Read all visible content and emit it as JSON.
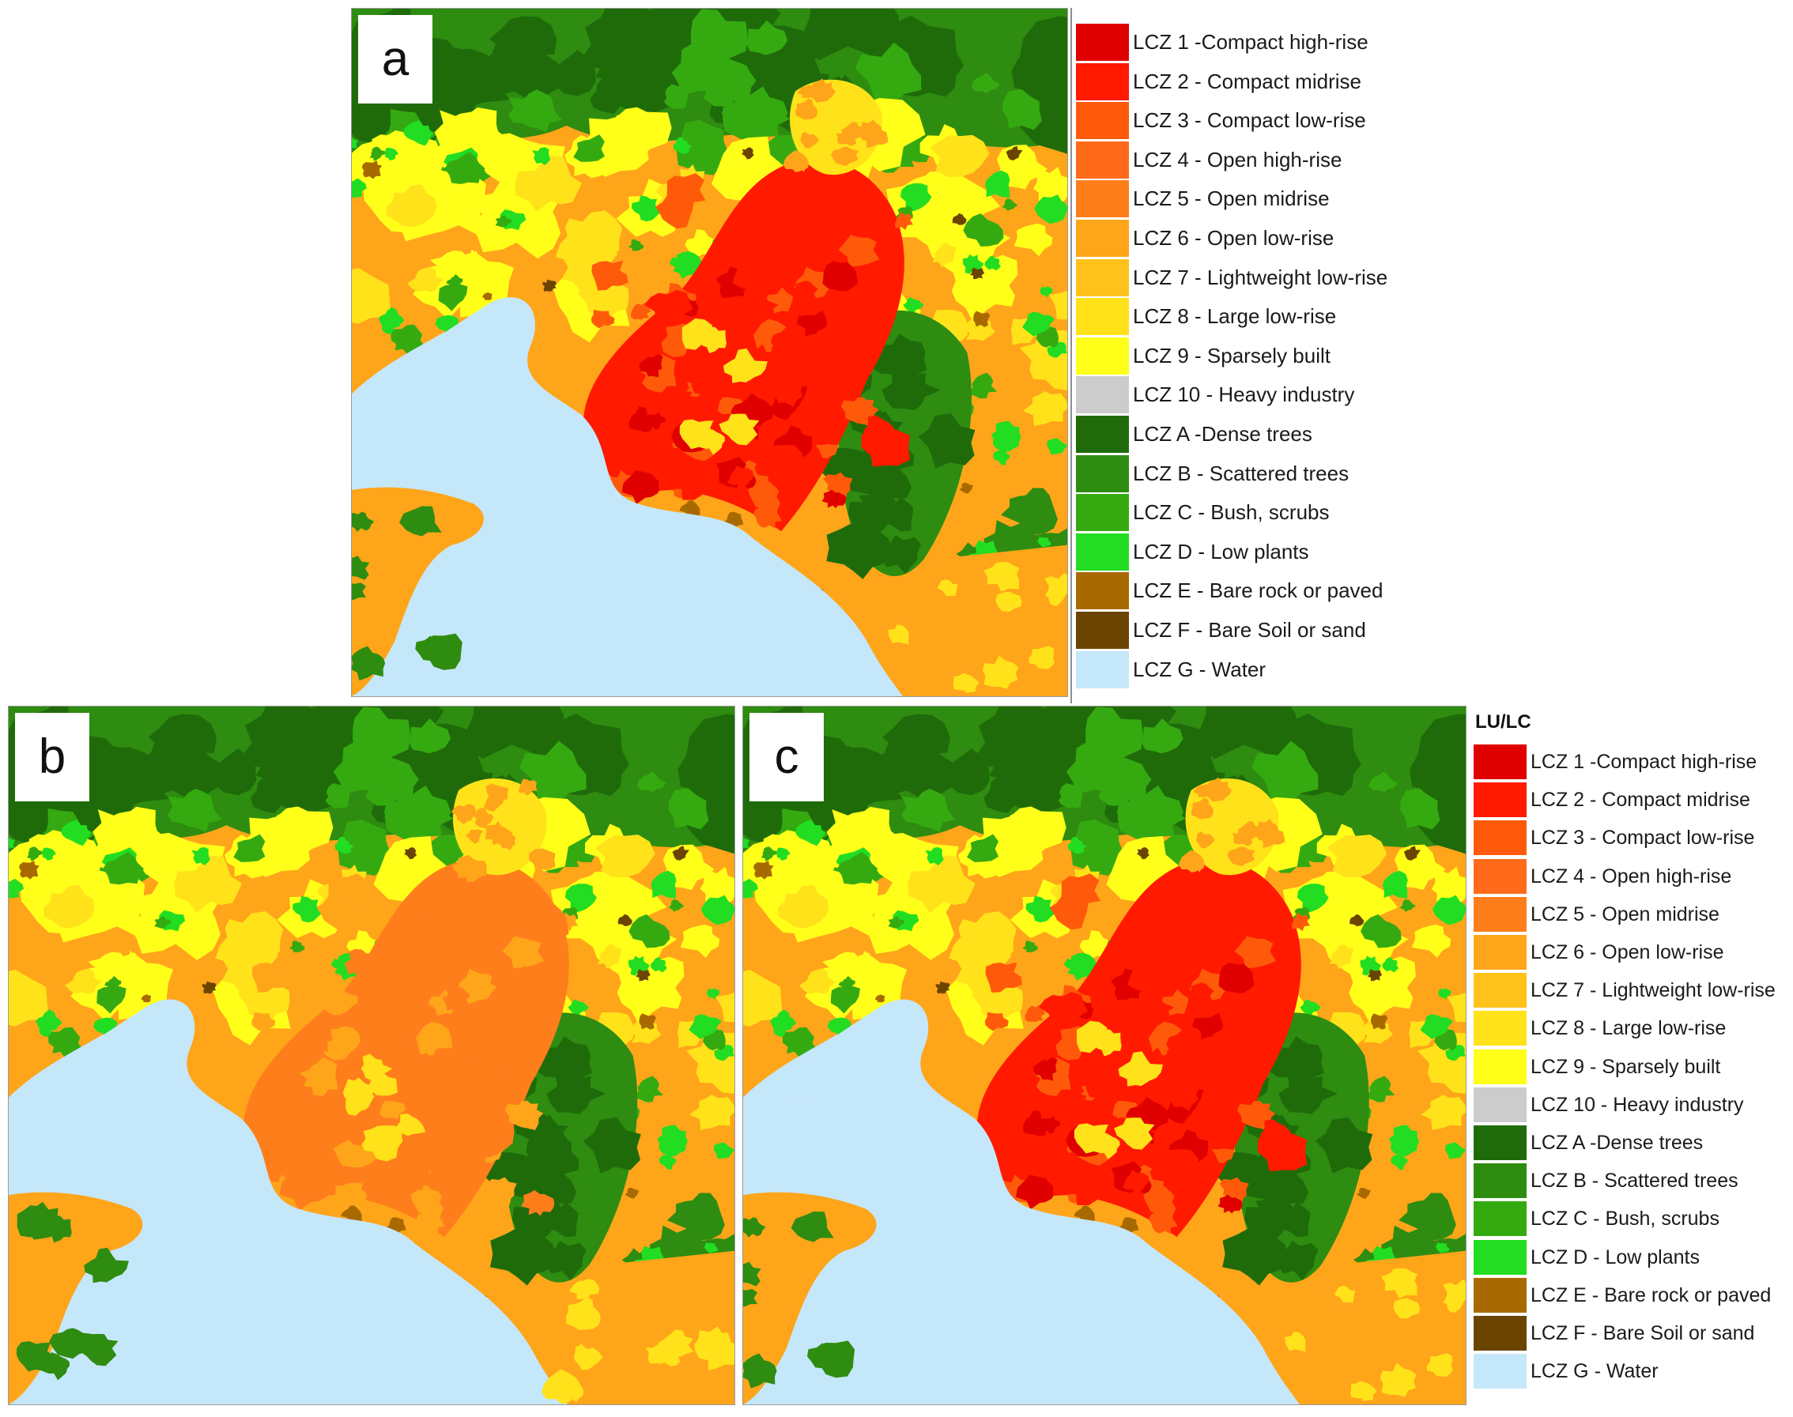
{
  "panels": {
    "a": {
      "letter": "a",
      "urban_intensity": 1.0
    },
    "b": {
      "letter": "b",
      "urban_intensity": 0.0
    },
    "c": {
      "letter": "c",
      "urban_intensity": 0.85
    }
  },
  "legend": {
    "title": "LU/LC",
    "items": [
      {
        "label": "LCZ 1 -Compact high-rise",
        "color": "#e00000"
      },
      {
        "label": "LCZ 2 - Compact midrise",
        "color": "#ff1a00"
      },
      {
        "label": "LCZ 3 - Compact low-rise",
        "color": "#ff5a0a"
      },
      {
        "label": "LCZ 4 - Open high-rise",
        "color": "#ff6b1a"
      },
      {
        "label": "LCZ 5 - Open midrise",
        "color": "#ff7e1c"
      },
      {
        "label": "LCZ 6 - Open low-rise",
        "color": "#ffa51a"
      },
      {
        "label": "LCZ 7 - Lightweight low-rise",
        "color": "#ffc21a"
      },
      {
        "label": "LCZ 8 - Large low-rise",
        "color": "#ffe21a"
      },
      {
        "label": "LCZ 9 - Sparsely built",
        "color": "#ffff1a"
      },
      {
        "label": "LCZ 10 - Heavy industry",
        "color": "#cccccc"
      },
      {
        "label": "LCZ A -Dense trees",
        "color": "#1f6b0a"
      },
      {
        "label": "LCZ B - Scattered trees",
        "color": "#2e8c10"
      },
      {
        "label": "LCZ C - Bush, scrubs",
        "color": "#35aa10"
      },
      {
        "label": "LCZ D - Low plants",
        "color": "#22dd22"
      },
      {
        "label": "LCZ E - Bare rock or paved",
        "color": "#a86a00"
      },
      {
        "label": "LCZ F - Bare Soil or sand",
        "color": "#6b4400"
      },
      {
        "label": "LCZ G - Water",
        "color": "#c5e7fa"
      }
    ]
  }
}
